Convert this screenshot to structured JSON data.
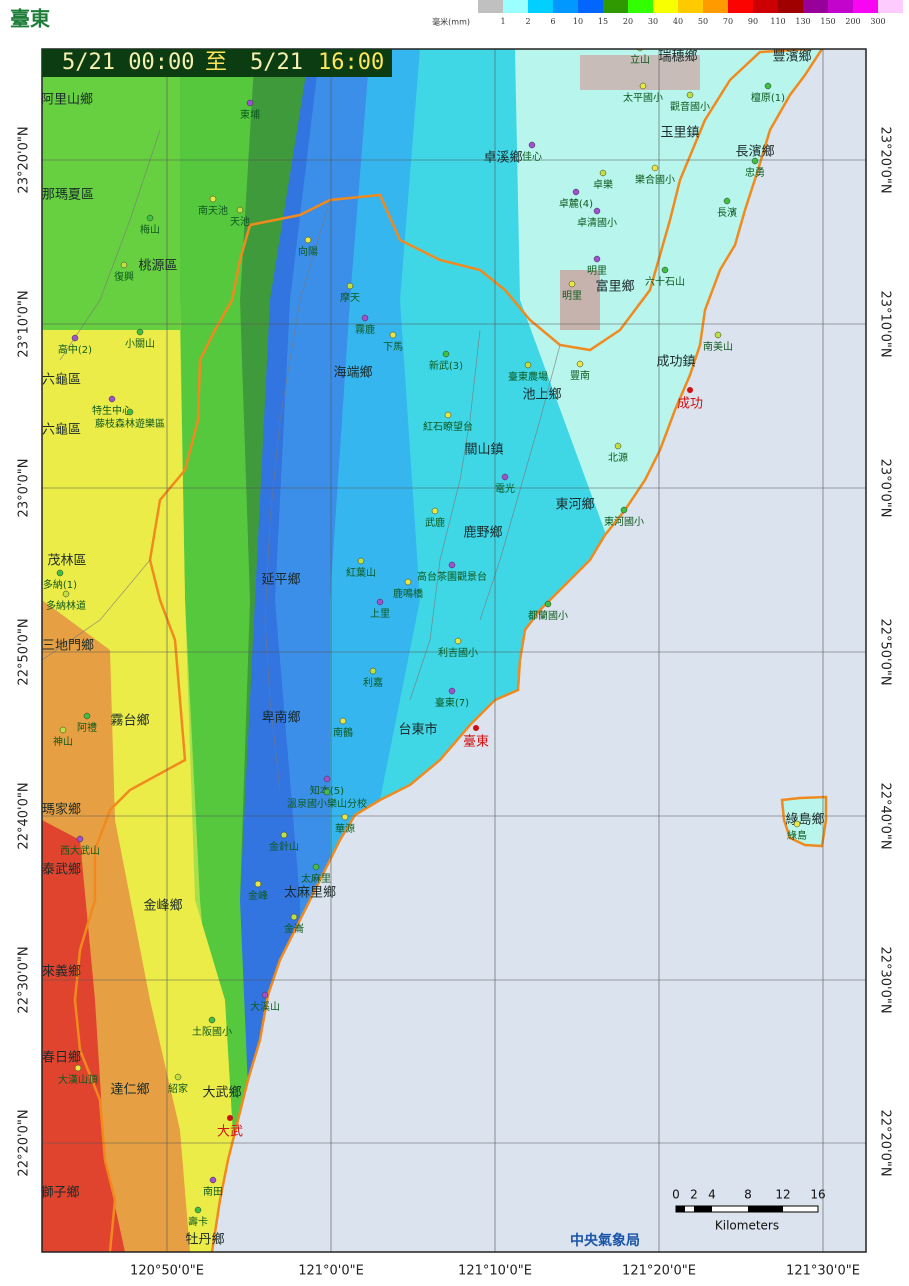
{
  "header": {
    "title": "臺東",
    "unit": "毫米(mm)",
    "scale": [
      "1",
      "2",
      "6",
      "10",
      "15",
      "20",
      "30",
      "40",
      "50",
      "70",
      "90",
      "110",
      "130",
      "150",
      "200",
      "300"
    ]
  },
  "banner": {
    "start": "5/21 00:00",
    "sep": "至",
    "end_date": "5/21",
    "end_time": "16:00"
  },
  "grid": {
    "lon": [
      "120°50'0\"E",
      "121°0'0\"E",
      "121°10'0\"E",
      "121°20'0\"E",
      "121°30'0\"E"
    ],
    "lat": [
      "23°20'0\"N",
      "23°10'0\"N",
      "23°0'0\"N",
      "22°50'0\"N",
      "22°40'0\"N",
      "22°30'0\"N",
      "22°20'0\"N"
    ]
  },
  "places": {
    "townships": [
      "阿里山鄉",
      "瑞穗鄉",
      "豐濱鄉",
      "卓溪鄉",
      "玉里鎮",
      "長濱鄉",
      "那瑪夏區",
      "桃源區",
      "富里鄉",
      "成功鎮",
      "海端鄉",
      "六龜區",
      "池上鄉",
      "六龜區",
      "關山鎮",
      "東河鄉",
      "鹿野鄉",
      "茂林區",
      "延平鄉",
      "三地門鄉",
      "霧台鄉",
      "卑南鄉",
      "台東市",
      "瑪家鄉",
      "綠島鄉",
      "泰武鄉",
      "太麻里鄉",
      "金峰鄉",
      "來義鄉",
      "春日鄉",
      "達仁鄉",
      "大武鄉",
      "獅子鄉",
      "牡丹鄉"
    ],
    "stations": [
      "立山",
      "東埔",
      "檀原(1)",
      "太平國小",
      "觀音國小",
      "佳心",
      "忠勇",
      "樂合國小",
      "卓樂",
      "卓麓(4)",
      "長濱",
      "南天池",
      "天池",
      "卓清國小",
      "梅山",
      "向陽",
      "復興",
      "明里",
      "六十石山",
      "明里",
      "摩天",
      "霧鹿",
      "小關山",
      "下馬",
      "南美山",
      "高中(2)",
      "新武(3)",
      "豐南",
      "臺東農場",
      "特生中心",
      "藤枝森林遊樂區",
      "紅石瞭望台",
      "北源",
      "電光",
      "東河國小",
      "武鹿",
      "紅葉山",
      "高台茶園觀景台",
      "多納(1)",
      "鹿鳴橋",
      "多納林道",
      "上里",
      "都蘭國小",
      "利吉國小",
      "利嘉",
      "臺東(7)",
      "阿禮",
      "南鶴",
      "神山",
      "知本(5)",
      "溫泉國小樂山分校",
      "華源",
      "金針山",
      "西大武山",
      "太麻里",
      "金峰",
      "金崙",
      "大溪山",
      "土阪國小",
      "大漢山頂",
      "紹家",
      "南田",
      "壽卡",
      "綠島"
    ],
    "cities": [
      "成功",
      "臺東",
      "大武"
    ]
  },
  "scalebar": {
    "ticks": [
      "0",
      "2",
      "4",
      "8",
      "12",
      "16"
    ],
    "unit": "Kilometers"
  },
  "credit": "中央氣象局"
}
